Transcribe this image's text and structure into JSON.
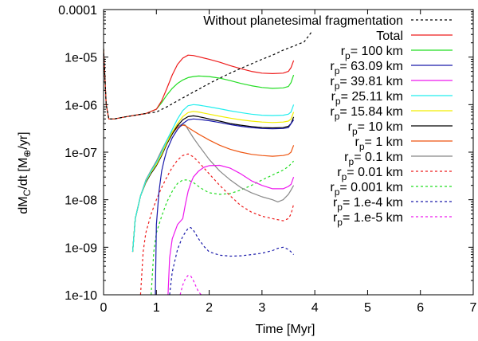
{
  "chart_data": {
    "type": "line",
    "title": "",
    "xlabel": "Time [Myr]",
    "ylabel": "dM_C/dt [M_⊕/yr]",
    "ylabel_parts": {
      "main": "dM",
      "sub1": "C",
      "mid": "/dt [M",
      "sub2": "⊕",
      "end": "/yr]"
    },
    "xlim": [
      0,
      7
    ],
    "ylim": [
      1e-10,
      0.0001
    ],
    "yscale": "log",
    "x_ticks": [
      "0",
      "1",
      "2",
      "3",
      "4",
      "5",
      "6",
      "7"
    ],
    "y_ticks": [
      "1e-10",
      "1e-09",
      "1e-08",
      "1e-07",
      "1e-06",
      "1e-05",
      "0.0001"
    ],
    "legend_position": "top-right",
    "series": [
      {
        "name": "Without planetesimal fragmentation",
        "label_prefix": "",
        "label_sub": "",
        "label_value": "Without planetesimal fragmentation",
        "color": "#000000",
        "dash": "3,3",
        "x": [
          0.0,
          0.05,
          0.1,
          0.2,
          0.4,
          0.6,
          0.8,
          1.0,
          1.2,
          1.4,
          1.6,
          1.8,
          2.0,
          2.2,
          2.4,
          2.6,
          2.8,
          3.0,
          3.2,
          3.4,
          3.6,
          3.8,
          3.95
        ],
        "y": [
          1.5e-05,
          1e-06,
          5e-07,
          5e-07,
          5.5e-07,
          6e-07,
          6.5e-07,
          7e-07,
          9e-07,
          1.2e-06,
          1.6e-06,
          2.1e-06,
          2.8e-06,
          3.6e-06,
          4.6e-06,
          5.8e-06,
          7.2e-06,
          9e-06,
          1.1e-05,
          1.4e-05,
          1.7e-05,
          2.1e-05,
          3.5e-05
        ]
      },
      {
        "name": "Total",
        "label_prefix": "",
        "label_sub": "",
        "label_value": "Total",
        "color": "#ee1c1c",
        "dash": "",
        "x": [
          0.0,
          0.05,
          0.1,
          0.2,
          0.4,
          0.6,
          0.8,
          1.0,
          1.1,
          1.2,
          1.3,
          1.4,
          1.5,
          1.6,
          1.7,
          1.8,
          2.0,
          2.2,
          2.4,
          2.6,
          2.8,
          3.0,
          3.2,
          3.4,
          3.5,
          3.55,
          3.6
        ],
        "y": [
          1.5e-05,
          1e-06,
          5e-07,
          5e-07,
          5.5e-07,
          6e-07,
          6.5e-07,
          8e-07,
          1.2e-06,
          2.2e-06,
          4.2e-06,
          7e-06,
          9.5e-06,
          1.1e-05,
          1.08e-05,
          1.02e-05,
          9e-06,
          7.8e-06,
          6.6e-06,
          5.7e-06,
          5e-06,
          4.6e-06,
          4.5e-06,
          4.6e-06,
          5e-06,
          6e-06,
          8.5e-06
        ]
      },
      {
        "name": "r_p= 100 km",
        "label_prefix": "r",
        "label_sub": "p",
        "label_value": "= 100 km",
        "color": "#22dd22",
        "dash": "",
        "x": [
          0.0,
          0.05,
          0.1,
          0.2,
          0.4,
          0.6,
          0.8,
          1.0,
          1.1,
          1.2,
          1.3,
          1.4,
          1.5,
          1.6,
          1.7,
          1.8,
          2.0,
          2.2,
          2.4,
          2.6,
          2.8,
          3.0,
          3.2,
          3.4,
          3.5,
          3.55,
          3.6
        ],
        "y": [
          1.5e-05,
          1e-06,
          5e-07,
          5e-07,
          5.5e-07,
          6e-07,
          6.5e-07,
          8e-07,
          1.1e-06,
          1.6e-06,
          2.2e-06,
          2.8e-06,
          3.3e-06,
          3.7e-06,
          3.9e-06,
          4e-06,
          3.9e-06,
          3.6e-06,
          3.2e-06,
          2.8e-06,
          2.5e-06,
          2.3e-06,
          2.2e-06,
          2.25e-06,
          2.4e-06,
          2.9e-06,
          4.2e-06
        ]
      },
      {
        "name": "r_p= 63.09 km",
        "label_prefix": "r",
        "label_sub": "p",
        "label_value": "= 63.09 km",
        "color": "#1a1aaa",
        "dash": "",
        "x": [
          0.98,
          1.0,
          1.05,
          1.1,
          1.15,
          1.2,
          1.3,
          1.4,
          1.5,
          1.6,
          1.7,
          1.8,
          2.0,
          2.2,
          2.4,
          2.6,
          2.8,
          3.0,
          3.2,
          3.4,
          3.5,
          3.6
        ],
        "y": [
          1e-10,
          3e-09,
          1.5e-08,
          4e-08,
          7e-08,
          1.1e-07,
          2e-07,
          3e-07,
          4e-07,
          4.8e-07,
          5e-07,
          4.9e-07,
          4.6e-07,
          4.2e-07,
          3.8e-07,
          3.5e-07,
          3.3e-07,
          3.15e-07,
          3.1e-07,
          3.15e-07,
          3.3e-07,
          4.8e-07
        ]
      },
      {
        "name": "r_p= 39.81 km",
        "label_prefix": "r",
        "label_sub": "p",
        "label_value": "= 39.81 km",
        "color": "#ee18ee",
        "dash": "",
        "x": [
          1.22,
          1.25,
          1.3,
          1.4,
          1.5,
          1.55,
          1.6,
          1.65,
          1.7,
          1.8,
          1.9,
          2.0,
          2.2,
          2.4,
          2.6,
          2.8,
          3.0,
          3.2,
          3.4,
          3.5,
          3.55,
          3.6
        ],
        "y": [
          1e-10,
          6e-10,
          1.5e-09,
          3e-09,
          4e-09,
          8e-09,
          1.5e-08,
          2.2e-08,
          3e-08,
          4e-08,
          4.8e-08,
          5.2e-08,
          5.3e-08,
          4.6e-08,
          3.5e-08,
          2.5e-08,
          2e-08,
          1.7e-08,
          1.7e-08,
          1.9e-08,
          2.1e-08,
          3e-08
        ]
      },
      {
        "name": "r_p= 25.11 km",
        "label_prefix": "r",
        "label_sub": "p",
        "label_value": "= 25.11 km",
        "color": "#22eeee",
        "dash": "",
        "x": [
          0.55,
          0.6,
          0.7,
          0.8,
          0.9,
          1.0,
          1.1,
          1.2,
          1.3,
          1.4,
          1.5,
          1.6,
          1.7,
          1.8,
          2.0,
          2.2,
          2.4,
          2.6,
          2.8,
          3.0,
          3.2,
          3.4,
          3.5,
          3.55,
          3.6
        ],
        "y": [
          8e-10,
          4e-09,
          1.2e-08,
          2.5e-08,
          4e-08,
          6e-08,
          1e-07,
          1.8e-07,
          3e-07,
          5e-07,
          7.5e-07,
          9.5e-07,
          1e-06,
          9.8e-07,
          9e-07,
          8.2e-07,
          7.4e-07,
          6.8e-07,
          6.3e-07,
          6e-07,
          5.9e-07,
          6e-07,
          6.3e-07,
          7e-07,
          1e-06
        ]
      },
      {
        "name": "r_p= 15.84 km",
        "label_prefix": "r",
        "label_sub": "p",
        "label_value": "= 15.84 km",
        "color": "#f2ee00",
        "dash": "",
        "x": [
          0.55,
          0.6,
          0.7,
          0.8,
          0.9,
          1.0,
          1.1,
          1.2,
          1.3,
          1.4,
          1.5,
          1.6,
          1.7,
          1.8,
          2.0,
          2.2,
          2.4,
          2.6,
          2.8,
          3.0,
          3.2,
          3.4,
          3.5,
          3.55,
          3.6
        ],
        "y": [
          8e-10,
          4e-09,
          1.2e-08,
          2.4e-08,
          3.8e-08,
          5.5e-08,
          9e-08,
          1.6e-07,
          2.6e-07,
          4e-07,
          5.6e-07,
          6.8e-07,
          7.2e-07,
          7e-07,
          6.3e-07,
          5.7e-07,
          5.2e-07,
          4.8e-07,
          4.5e-07,
          4.3e-07,
          4.2e-07,
          4.3e-07,
          4.5e-07,
          5e-07,
          7e-07
        ]
      },
      {
        "name": "r_p= 10 km",
        "label_prefix": "r",
        "label_sub": "p",
        "label_value": "= 10 km",
        "color": "#000000",
        "dash": "",
        "x": [
          0.55,
          0.6,
          0.7,
          0.8,
          0.9,
          1.0,
          1.1,
          1.2,
          1.3,
          1.4,
          1.5,
          1.6,
          1.7,
          1.8,
          2.0,
          2.2,
          2.4,
          2.6,
          2.8,
          3.0,
          3.2,
          3.4,
          3.5,
          3.55,
          3.6
        ],
        "y": [
          8e-10,
          4e-09,
          1.2e-08,
          2.3e-08,
          3.6e-08,
          5.2e-08,
          8.5e-08,
          1.5e-07,
          2.4e-07,
          3.6e-07,
          4.8e-07,
          5.6e-07,
          5.8e-07,
          5.6e-07,
          5e-07,
          4.5e-07,
          4e-07,
          3.7e-07,
          3.45e-07,
          3.3e-07,
          3.25e-07,
          3.3e-07,
          3.5e-07,
          4e-07,
          5.5e-07
        ]
      },
      {
        "name": "r_p= 1 km",
        "label_prefix": "r",
        "label_sub": "p",
        "label_value": "= 1 km",
        "color": "#ee5511",
        "dash": "",
        "x": [
          0.55,
          0.6,
          0.7,
          0.8,
          0.9,
          1.0,
          1.1,
          1.2,
          1.3,
          1.4,
          1.5,
          1.55,
          1.6,
          1.7,
          1.8,
          2.0,
          2.2,
          2.4,
          2.6,
          2.8,
          3.0,
          3.2,
          3.4,
          3.5,
          3.55,
          3.6
        ],
        "y": [
          8e-10,
          4e-09,
          1.2e-08,
          2.5e-08,
          4e-08,
          6e-08,
          1e-07,
          1.6e-07,
          2.5e-07,
          3.3e-07,
          3.7e-07,
          3.6e-07,
          3.3e-07,
          2.8e-07,
          2.4e-07,
          1.8e-07,
          1.4e-07,
          1.15e-07,
          1e-07,
          9e-08,
          8.5e-08,
          8.2e-08,
          8.5e-08,
          9e-08,
          1e-07,
          1.4e-07
        ]
      },
      {
        "name": "r_p= 0.1 km",
        "label_prefix": "r",
        "label_sub": "p",
        "label_value": "= 0.1 km",
        "color": "#888888",
        "dash": "",
        "x": [
          0.55,
          0.6,
          0.7,
          0.8,
          0.9,
          1.0,
          1.1,
          1.2,
          1.3,
          1.4,
          1.5,
          1.55,
          1.6,
          1.7,
          1.8,
          2.0,
          2.2,
          2.4,
          2.6,
          2.8,
          3.0,
          3.2,
          3.3,
          3.4,
          3.5,
          3.55,
          3.6
        ],
        "y": [
          8e-10,
          4e-09,
          1.2e-08,
          2.6e-08,
          4.2e-08,
          6.5e-08,
          1.1e-07,
          1.8e-07,
          2.7e-07,
          3.5e-07,
          3.9e-07,
          3.7e-07,
          3e-07,
          2e-07,
          1.4e-07,
          7e-08,
          4e-08,
          2.6e-08,
          1.8e-08,
          1.4e-08,
          1.15e-08,
          1e-08,
          9e-09,
          1e-08,
          1.3e-08,
          1.6e-08,
          2e-08
        ]
      },
      {
        "name": "r_p= 0.01 km",
        "label_prefix": "r",
        "label_sub": "p",
        "label_value": "= 0.01 km",
        "color": "#ee1c1c",
        "dash": "3,3",
        "x": [
          0.7,
          0.75,
          0.8,
          0.9,
          1.0,
          1.1,
          1.2,
          1.3,
          1.4,
          1.5,
          1.6,
          1.7,
          1.8,
          2.0,
          2.2,
          2.4,
          2.6,
          2.8,
          3.0,
          3.2,
          3.4,
          3.5,
          3.55,
          3.6
        ],
        "y": [
          1e-10,
          8e-10,
          2e-09,
          5e-09,
          1e-08,
          1.8e-08,
          3e-08,
          4.8e-08,
          6.8e-08,
          8.5e-08,
          9.2e-08,
          8e-08,
          6.2e-08,
          3.5e-08,
          2e-08,
          1.2e-08,
          7.5e-09,
          5.5e-09,
          4.5e-09,
          4e-09,
          3.6e-09,
          4e-09,
          5e-09,
          8e-09
        ]
      },
      {
        "name": "r_p= 0.001 km",
        "label_prefix": "r",
        "label_sub": "p",
        "label_value": "= 0.001 km",
        "color": "#22dd22",
        "dash": "3,3",
        "x": [
          0.9,
          0.95,
          1.0,
          1.1,
          1.2,
          1.3,
          1.4,
          1.5,
          1.6,
          1.7,
          1.8,
          1.9,
          2.0,
          2.2,
          2.4,
          2.6,
          2.8,
          3.0,
          3.2,
          3.4,
          3.5,
          3.6
        ],
        "y": [
          1e-10,
          8e-10,
          2e-09,
          4.5e-09,
          9e-09,
          1.5e-08,
          2.2e-08,
          2.6e-08,
          2.6e-08,
          2.3e-08,
          1.9e-08,
          1.6e-08,
          1.4e-08,
          1.3e-08,
          1.35e-08,
          1.6e-08,
          2e-08,
          2.6e-08,
          3.3e-08,
          4.2e-08,
          5e-08,
          6.5e-08
        ]
      },
      {
        "name": "r_p= 1.e-4 km",
        "label_prefix": "r",
        "label_sub": "p",
        "label_value": "= 1.e-4 km",
        "color": "#1a1aaa",
        "dash": "3,3",
        "x": [
          1.25,
          1.3,
          1.4,
          1.5,
          1.6,
          1.65,
          1.7,
          1.8,
          1.9,
          2.0,
          2.2,
          2.4,
          2.6,
          2.8,
          3.0,
          3.2,
          3.3,
          3.4,
          3.5,
          3.55,
          3.6
        ],
        "y": [
          1e-10,
          3e-10,
          9e-10,
          1.7e-09,
          2.5e-09,
          2.6e-09,
          2.3e-09,
          1.5e-09,
          1.05e-09,
          8e-10,
          6.8e-10,
          6.5e-10,
          6.6e-10,
          7e-10,
          7.5e-10,
          8.5e-10,
          9.5e-10,
          1e-09,
          9e-10,
          8e-10,
          7e-10
        ]
      },
      {
        "name": "r_p= 1.e-5 km",
        "label_prefix": "r",
        "label_sub": "p",
        "label_value": "= 1.e-5 km",
        "color": "#ee18ee",
        "dash": "3,3",
        "x": [
          1.45,
          1.5,
          1.55,
          1.6,
          1.65,
          1.7,
          1.75,
          1.8,
          1.85
        ],
        "y": [
          1e-10,
          1.6e-10,
          2.2e-10,
          2.55e-10,
          2.5e-10,
          2e-10,
          1.5e-10,
          1.15e-10,
          1e-10
        ]
      }
    ]
  }
}
